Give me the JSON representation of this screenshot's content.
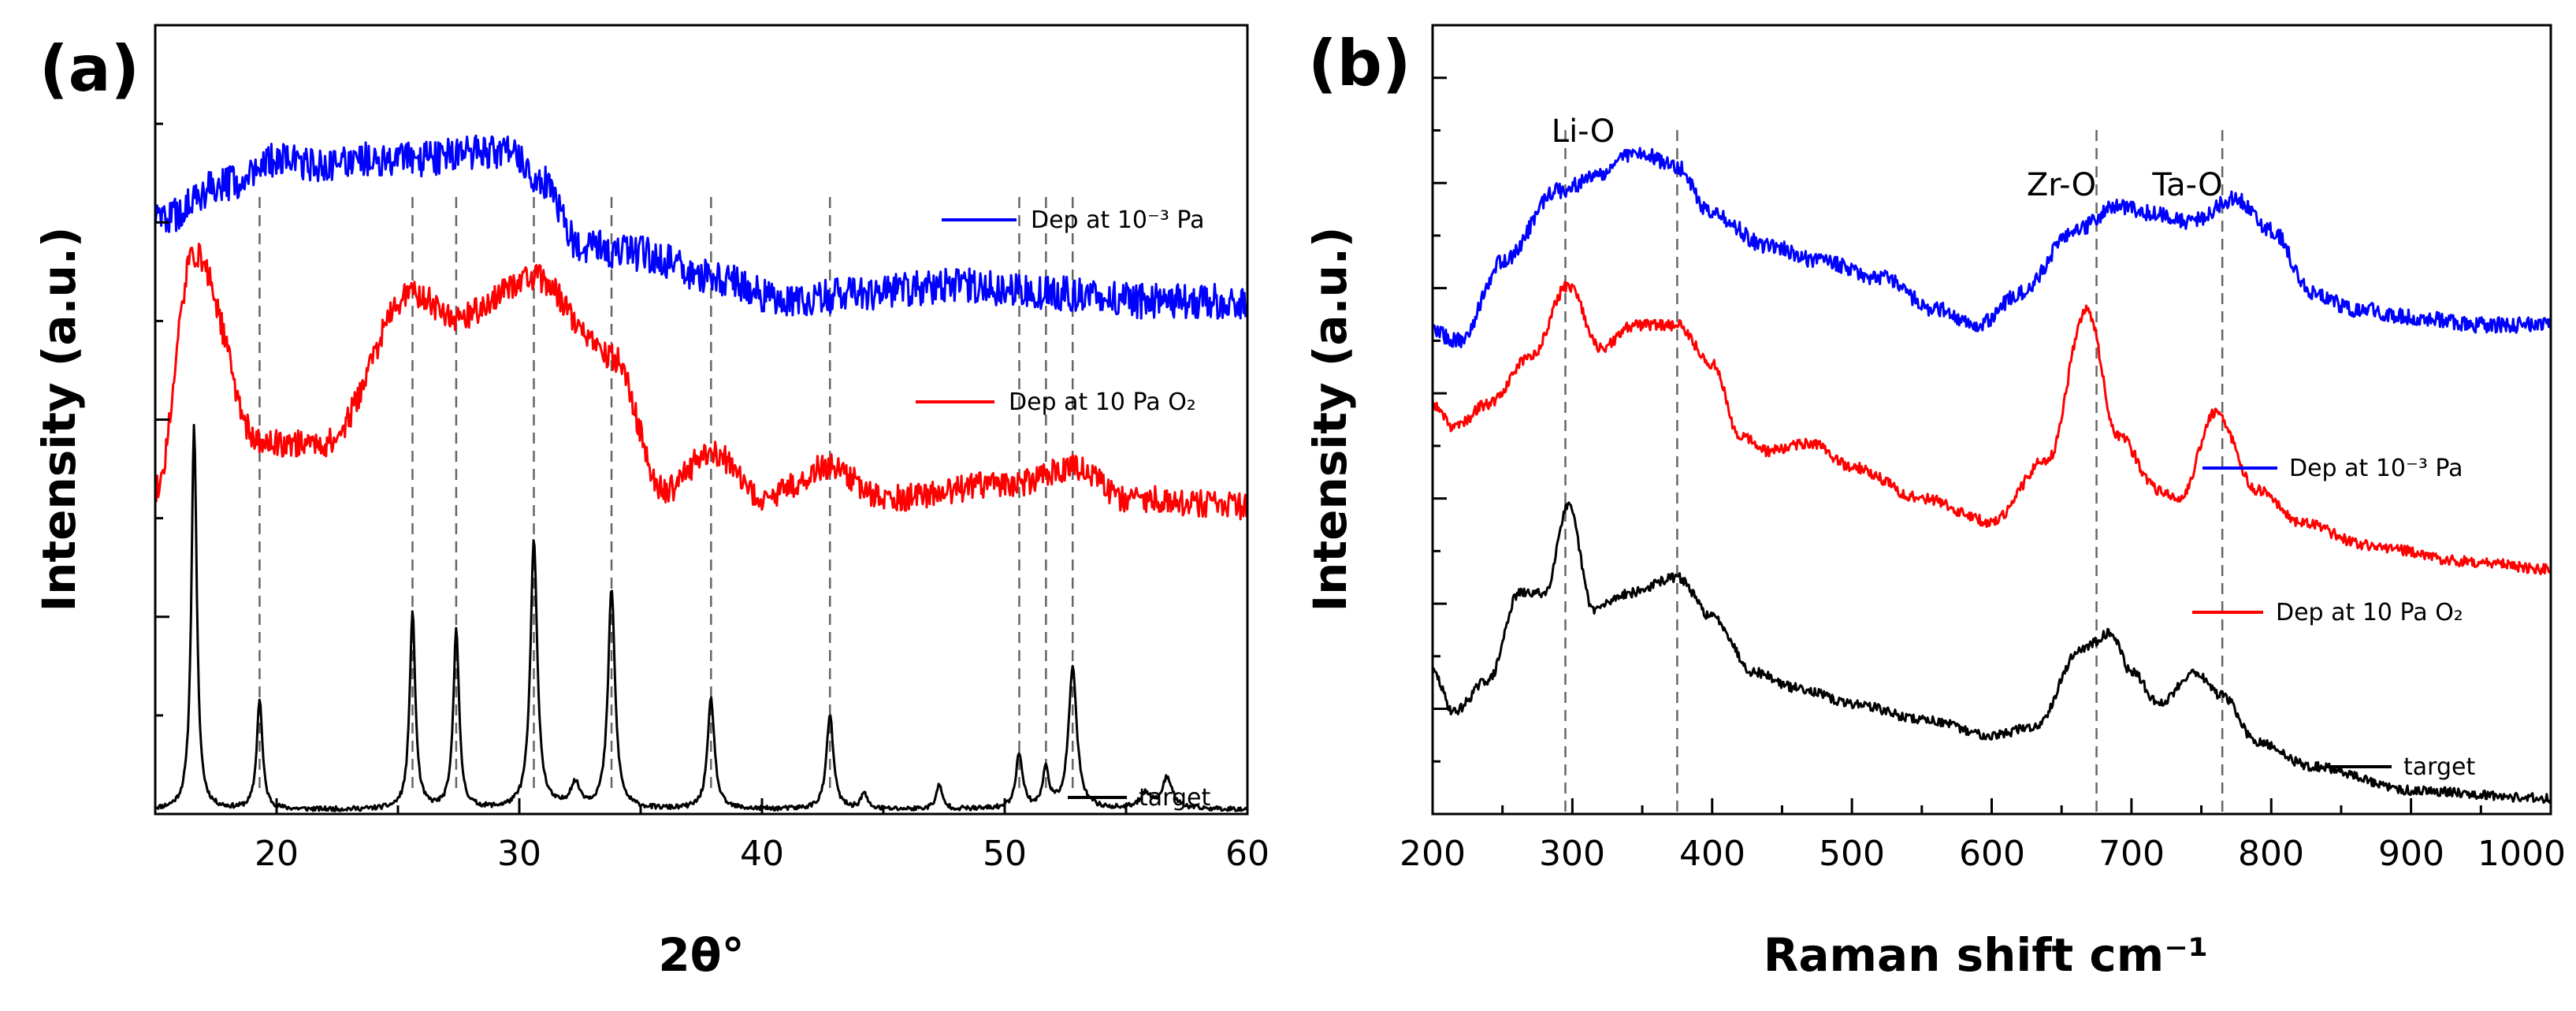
{
  "panels": [
    {
      "label": "(a)",
      "xlabel": "2θ°",
      "ylabel": "Intensity (a.u.)",
      "xticks": [
        "20",
        "30",
        "40",
        "50",
        "60"
      ],
      "legend": [
        {
          "name": "Dep at 10⁻³ Pa",
          "color": "#0000ff"
        },
        {
          "name": "Dep at 10 Pa O₂",
          "color": "#ff0000"
        },
        {
          "name": "target",
          "color": "#000000"
        }
      ]
    },
    {
      "label": "(b)",
      "xlabel": "Raman shift cm⁻¹",
      "ylabel": "Intensity (a.u.)",
      "xticks": [
        "200",
        "300",
        "400",
        "500",
        "600",
        "700",
        "800",
        "900",
        "1000"
      ],
      "annotations": [
        "Li-O",
        "Zr-O",
        "Ta-O"
      ],
      "legend": [
        {
          "name": "Dep at 10⁻³ Pa",
          "color": "#0000ff"
        },
        {
          "name": "Dep at 10 Pa O₂",
          "color": "#ff0000"
        },
        {
          "name": "target",
          "color": "#000000"
        }
      ]
    }
  ],
  "chart_data": [
    {
      "type": "line",
      "title": "(a)",
      "xlabel": "2θ°",
      "ylabel": "Intensity (a.u.)",
      "xlim": [
        15,
        60
      ],
      "ylim": [
        0,
        100
      ],
      "xticks": [
        20,
        30,
        40,
        50,
        60
      ],
      "yticks_count": 8,
      "reference_lines_x": [
        19.3,
        25.6,
        27.4,
        30.6,
        33.8,
        37.9,
        42.8,
        50.6,
        51.7,
        52.8
      ],
      "series": [
        {
          "name": "target",
          "color": "#000000",
          "baseline": 0.0,
          "noise": 0.3,
          "x": [
            15.0,
            16.6,
            19.3,
            25.6,
            27.4,
            30.6,
            32.3,
            33.8,
            37.9,
            42.8,
            44.2,
            47.3,
            50.6,
            51.7,
            52.8,
            55.8,
            56.7,
            60.0
          ],
          "y": [
            0.5,
            49,
            14,
            25,
            23,
            34,
            3,
            28,
            14,
            12,
            2,
            3,
            7,
            5,
            18,
            2,
            4,
            0.6
          ],
          "peak_widths": [
            0,
            0.13,
            0.14,
            0.14,
            0.14,
            0.17,
            0.25,
            0.17,
            0.17,
            0.17,
            0.15,
            0.15,
            0.17,
            0.15,
            0.2,
            0.25,
            0.25,
            0
          ]
        },
        {
          "name": "Dep at 10 Pa O₂",
          "color": "#ff0000",
          "noise": 1.7,
          "x": [
            15,
            16.6,
            19.3,
            22,
            25.6,
            27.4,
            30.6,
            33.8,
            36,
            37.9,
            40,
            42.8,
            45,
            50.6,
            52.8,
            55,
            60
          ],
          "y": [
            41,
            71,
            47,
            47,
            66,
            63,
            68,
            58,
            41,
            46,
            40,
            44,
            40,
            42,
            44,
            40,
            39
          ]
        },
        {
          "name": "Dep at 10⁻³ Pa",
          "color": "#0000ff",
          "noise": 2.2,
          "x": [
            15,
            18,
            20,
            22,
            24,
            26,
            28,
            29.5,
            31,
            32.5,
            35,
            38,
            41,
            44,
            48,
            52,
            56,
            60
          ],
          "y": [
            75,
            80,
            83,
            82,
            83,
            83,
            84,
            84,
            80,
            72,
            71,
            68,
            65,
            66,
            67,
            66,
            65,
            65
          ]
        }
      ]
    },
    {
      "type": "line",
      "title": "(b)",
      "xlabel": "Raman shift cm⁻¹",
      "ylabel": "Intensity (a.u.)",
      "xlim": [
        200,
        1000
      ],
      "ylim": [
        0,
        100
      ],
      "xticks": [
        200,
        300,
        400,
        500,
        600,
        700,
        800,
        900,
        1000
      ],
      "yticks_count": 15,
      "reference_lines_x": [
        295,
        375,
        675,
        765
      ],
      "annotations": [
        {
          "text": "Li-O",
          "x": 335
        },
        {
          "text": "Zr-O",
          "x": 675
        },
        {
          "text": "Ta-O",
          "x": 765
        }
      ],
      "series": [
        {
          "name": "target",
          "color": "#000000",
          "noise": 0.6,
          "x": [
            200,
            215,
            240,
            262,
            280,
            297,
            315,
            340,
            375,
            400,
            430,
            460,
            500,
            550,
            600,
            630,
            665,
            685,
            700,
            720,
            745,
            765,
            790,
            830,
            900,
            1000
          ],
          "y": [
            18,
            13,
            17,
            28,
            28,
            39,
            26,
            28,
            30,
            25,
            18,
            16,
            14,
            12,
            10,
            11,
            21,
            23,
            18,
            14,
            18,
            15,
            9,
            6,
            3,
            2
          ]
        },
        {
          "name": "Dep at 10 Pa O₂",
          "color": "#ff0000",
          "noise": 0.7,
          "x": [
            200,
            215,
            240,
            270,
            297,
            320,
            345,
            375,
            400,
            420,
            440,
            470,
            500,
            550,
            600,
            640,
            668,
            690,
            720,
            735,
            760,
            790,
            820,
            870,
            940,
            1000
          ],
          "y": [
            52,
            49,
            52,
            58,
            67,
            59,
            62,
            62,
            57,
            48,
            46,
            47,
            44,
            40,
            37,
            45,
            64,
            48,
            41,
            40,
            51,
            41,
            37,
            34,
            32,
            31
          ]
        },
        {
          "name": "Dep at 10⁻³ Pa",
          "color": "#0000ff",
          "noise": 1.0,
          "x": [
            200,
            220,
            250,
            290,
            320,
            345,
            375,
            400,
            440,
            480,
            520,
            560,
            590,
            620,
            660,
            690,
            720,
            740,
            775,
            800,
            830,
            860,
            900,
            950,
            1000
          ],
          "y": [
            61,
            60,
            70,
            79,
            81,
            84,
            82,
            76,
            72,
            70,
            68,
            64,
            62,
            66,
            74,
            77,
            76,
            75,
            78,
            74,
            66,
            64,
            63,
            62,
            62
          ]
        }
      ]
    }
  ]
}
